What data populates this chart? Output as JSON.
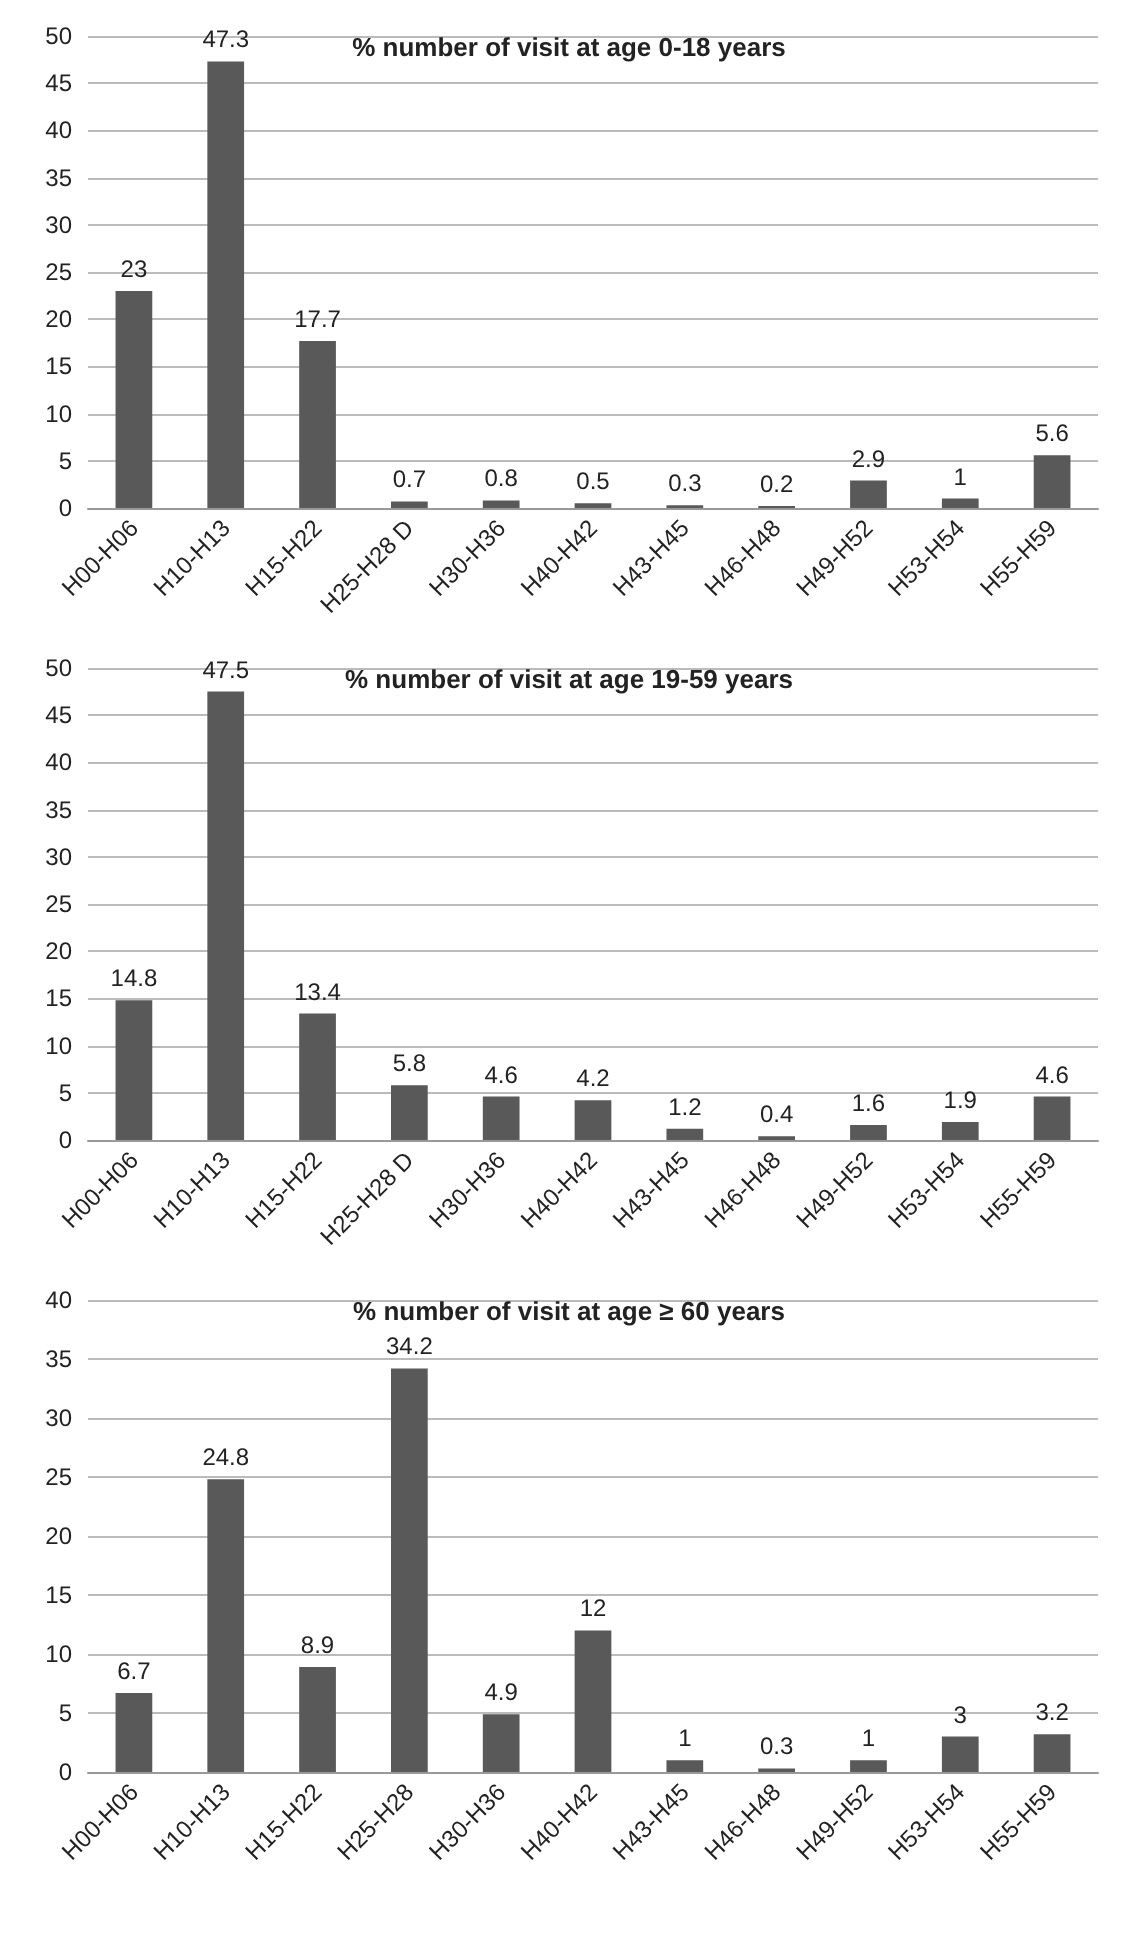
{
  "chart_data": [
    {
      "type": "bar",
      "title": "% number of visit at age 0-18 years",
      "categories": [
        "H00-H06",
        "H10-H13",
        "H15-H22",
        "H25-H28 D",
        "H30-H36",
        "H40-H42",
        "H43-H45",
        "H46-H48",
        "H49-H52",
        "H53-H54",
        "H55-H59"
      ],
      "values": [
        23,
        47.3,
        17.7,
        0.7,
        0.8,
        0.5,
        0.3,
        0.2,
        2.9,
        1,
        5.6
      ],
      "color": "#595959",
      "ylim": [
        0,
        50
      ],
      "yticks": [
        0,
        5,
        10,
        15,
        20,
        25,
        30,
        35,
        40,
        45,
        50
      ],
      "grid": "y",
      "data_labels": true
    },
    {
      "type": "bar",
      "title": "% number of visit at age 19-59 years",
      "categories": [
        "H00-H06",
        "H10-H13",
        "H15-H22",
        "H25-H28 D",
        "H30-H36",
        "H40-H42",
        "H43-H45",
        "H46-H48",
        "H49-H52",
        "H53-H54",
        "H55-H59"
      ],
      "values": [
        14.8,
        47.5,
        13.4,
        5.8,
        4.6,
        4.2,
        1.2,
        0.4,
        1.6,
        1.9,
        4.6
      ],
      "color": "#595959",
      "ylim": [
        0,
        50
      ],
      "yticks": [
        0,
        5,
        10,
        15,
        20,
        25,
        30,
        35,
        40,
        45,
        50
      ],
      "grid": "y",
      "data_labels": true
    },
    {
      "type": "bar",
      "title": "% number of visit at age ≥ 60 years",
      "categories": [
        "H00-H06",
        "H10-H13",
        "H15-H22",
        "H25-H28",
        "H30-H36",
        "H40-H42",
        "H43-H45",
        "H46-H48",
        "H49-H52",
        "H53-H54",
        "H55-H59"
      ],
      "values": [
        6.7,
        24.8,
        8.9,
        34.2,
        4.9,
        12,
        1,
        0.3,
        1,
        3,
        3.2
      ],
      "color": "#595959",
      "ylim": [
        0,
        40
      ],
      "yticks": [
        0,
        5,
        10,
        15,
        20,
        25,
        30,
        35,
        40
      ],
      "grid": "y",
      "data_labels": true
    }
  ]
}
